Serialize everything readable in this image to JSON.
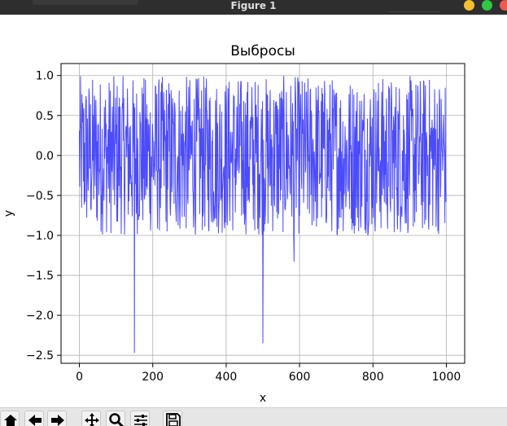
{
  "window": {
    "title": "Figure 1",
    "controls": [
      {
        "name": "minimize-button",
        "color": "#f5bf2e"
      },
      {
        "name": "maximize-button",
        "color": "#2fc843"
      },
      {
        "name": "close-button",
        "color": "#ef5a4f"
      }
    ]
  },
  "toolbar": {
    "buttons": [
      "home-icon",
      "back-arrow-icon",
      "forward-arrow-icon",
      "pan-icon",
      "zoom-icon",
      "configure-subplots-icon",
      "save-icon"
    ]
  },
  "chart_data": {
    "type": "line",
    "title": "Выбросы",
    "xlabel": "x",
    "ylabel": "y",
    "xlim": [
      -50,
      1050
    ],
    "ylim": [
      -2.6,
      1.15
    ],
    "xticks": [
      0,
      200,
      400,
      600,
      800,
      1000
    ],
    "xtick_labels": [
      "0",
      "200",
      "400",
      "600",
      "800",
      "1000"
    ],
    "yticks": [
      1.0,
      0.5,
      0.0,
      -0.5,
      -1.0,
      -1.5,
      -2.0,
      -2.5
    ],
    "ytick_labels": [
      "1.0",
      "0.5",
      "0.0",
      "−0.5",
      "−1.0",
      "−1.5",
      "−2.0",
      "−2.5"
    ],
    "grid": true,
    "line_color": "#2b2bff",
    "series": [
      {
        "points_count": 1000,
        "x_range": [
          0,
          999
        ],
        "y_range_typical": [
          -1.0,
          1.0
        ],
        "outliers": [
          {
            "x": 150,
            "y": -2.47
          },
          {
            "x": 500,
            "y": -2.35
          },
          {
            "x": 585,
            "y": -1.33
          }
        ]
      }
    ]
  }
}
